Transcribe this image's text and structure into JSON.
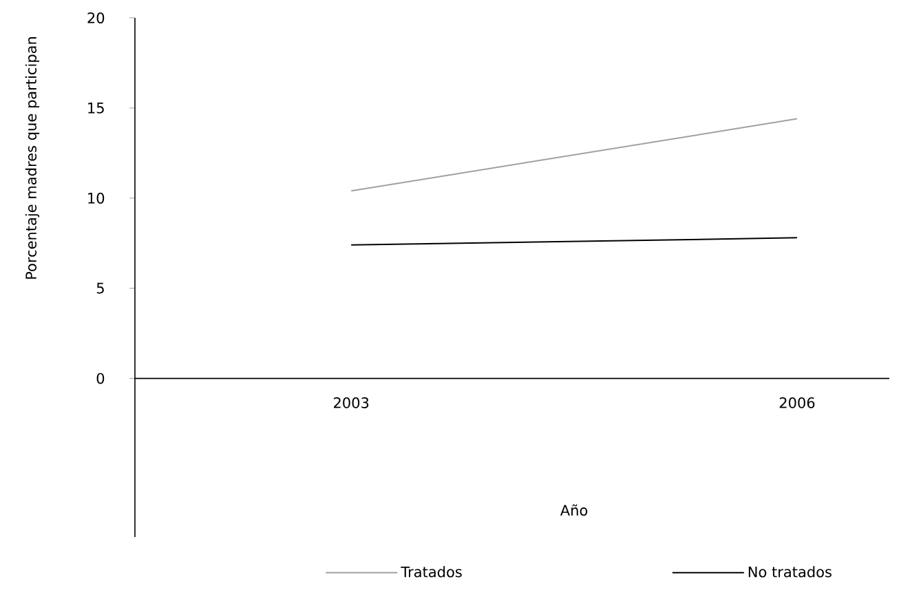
{
  "chart_data": {
    "type": "line",
    "xlabel": "Año",
    "ylabel": "Porcentaje madres que participan",
    "categories": [
      "2003",
      "2006"
    ],
    "series": [
      {
        "name": "Tratados",
        "color": "#a0a0a0",
        "values": [
          10.4,
          14.4
        ]
      },
      {
        "name": "No tratados",
        "color": "#000000",
        "values": [
          7.4,
          7.8
        ]
      }
    ],
    "ylim": [
      -8.8,
      20
    ],
    "yticks": [
      0,
      5,
      10,
      15,
      20
    ],
    "legend": "bottom",
    "marker": "none",
    "line_style": "solid"
  }
}
